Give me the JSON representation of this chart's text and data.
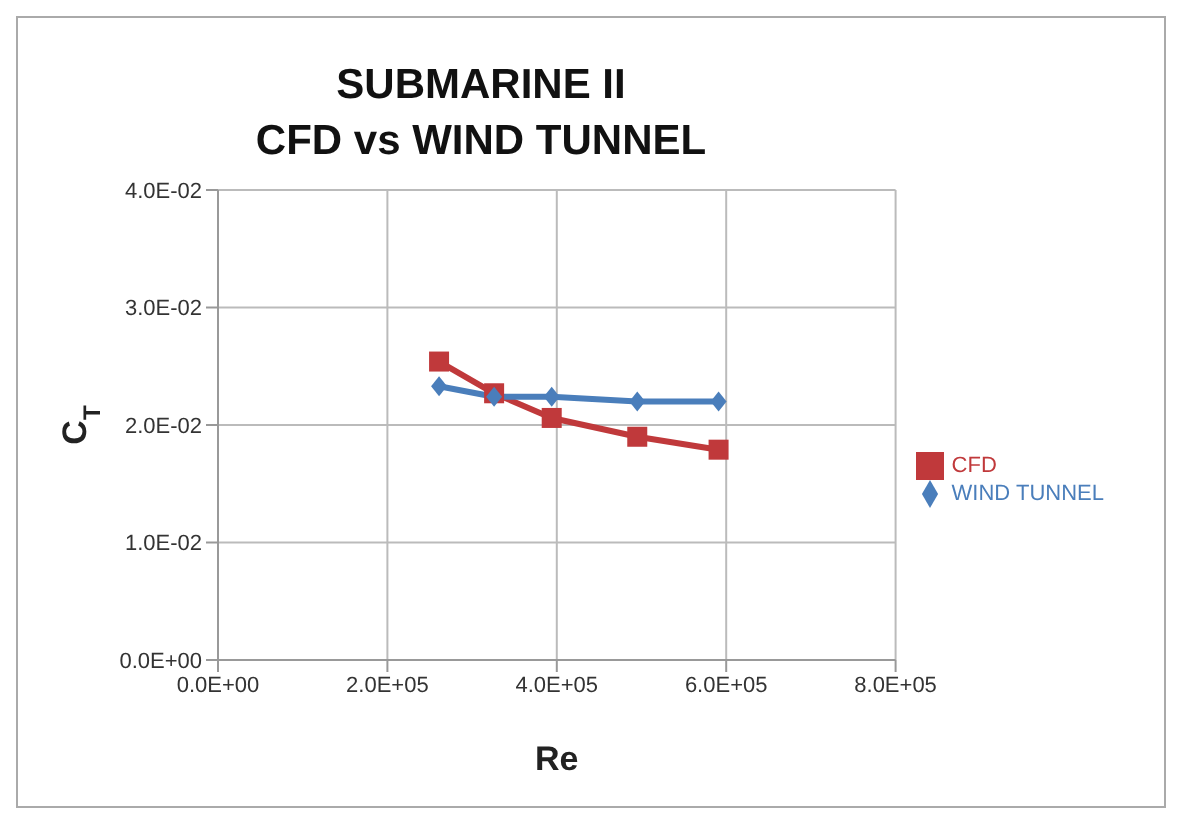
{
  "chart_data": {
    "type": "line",
    "title": "SUBMARINE II\nCFD vs WIND TUNNEL",
    "xlabel": "Re",
    "ylabel": "C$_{T}$",
    "series": [
      {
        "name": "CFD",
        "color": "#c0393b",
        "marker": "square",
        "x": [
          261000,
          326000,
          394000,
          495000,
          591000
        ],
        "values": [
          0.0254,
          0.0227,
          0.0206,
          0.019,
          0.0179
        ]
      },
      {
        "name": "WIND TUNNEL",
        "color": "#4a7ebb",
        "marker": "diamond",
        "x": [
          261000,
          326000,
          394000,
          495000,
          591000
        ],
        "values": [
          0.0233,
          0.0224,
          0.0224,
          0.022,
          0.022
        ]
      }
    ],
    "xlim": [
      0,
      800000
    ],
    "xticks": [
      {
        "value": 0,
        "label": "0.0E+00"
      },
      {
        "value": 200000,
        "label": "2.0E+05"
      },
      {
        "value": 400000,
        "label": "4.0E+05"
      },
      {
        "value": 600000,
        "label": "6.0E+05"
      },
      {
        "value": 800000,
        "label": "8.0E+05"
      }
    ],
    "ylim": [
      0,
      0.04
    ],
    "yticks": [
      {
        "value": 0,
        "label": "0.0E+00"
      },
      {
        "value": 0.01,
        "label": "1.0E-02"
      },
      {
        "value": 0.02,
        "label": "2.0E-02"
      },
      {
        "value": 0.03,
        "label": "3.0E-02"
      },
      {
        "value": 0.04,
        "label": "4.0E-02"
      }
    ],
    "grid": true,
    "legend": "right",
    "line_style": "solid"
  }
}
